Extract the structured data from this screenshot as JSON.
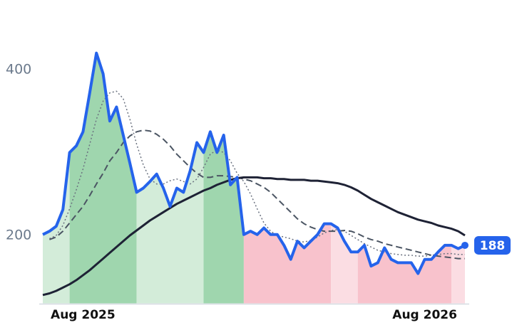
{
  "chart_data": {
    "type": "line",
    "categories": [
      null,
      null,
      null,
      null,
      null,
      null,
      "Aug 2025",
      null,
      null,
      null,
      null,
      null,
      null,
      null,
      null,
      null,
      null,
      null,
      null,
      null,
      null,
      null,
      null,
      null,
      null,
      null,
      null,
      null,
      null,
      null,
      null,
      null,
      null,
      null,
      null,
      null,
      null,
      null,
      null,
      null,
      null,
      null,
      null,
      null,
      null,
      null,
      null,
      null,
      null,
      null,
      null,
      null,
      null,
      null,
      null,
      null,
      null,
      "Aug 2026",
      null,
      null,
      null,
      null,
      null,
      null
    ],
    "series": [
      {
        "color": "#2563eb",
        "width": 4,
        "dash": "solid",
        "values": [
          201,
          205,
          211,
          231,
          300,
          308,
          325,
          372,
          420,
          395,
          338,
          355,
          321,
          287,
          252,
          257,
          265,
          274,
          257,
          235,
          257,
          252,
          278,
          312,
          300,
          325,
          300,
          321,
          261,
          270,
          201,
          205,
          201,
          209,
          201,
          201,
          188,
          171,
          193,
          185,
          193,
          201,
          214,
          214,
          209,
          193,
          180,
          180,
          188,
          163,
          167,
          185,
          171,
          167,
          167,
          167,
          154,
          171,
          171,
          180,
          188,
          188,
          184,
          188
        ]
      },
      {
        "color": "#1e2235",
        "width": 3,
        "dash": "solid",
        "values": [
          128,
          130,
          133,
          137,
          141,
          146,
          152,
          158,
          165,
          172,
          179,
          186,
          193,
          200,
          206,
          212,
          218,
          223,
          228,
          233,
          238,
          242,
          246,
          250,
          254,
          257,
          261,
          264,
          267,
          269,
          270,
          270,
          270,
          269,
          269,
          268,
          268,
          267,
          267,
          267,
          266,
          266,
          265,
          264,
          263,
          261,
          258,
          254,
          249,
          244,
          240,
          236,
          232,
          228,
          225,
          222,
          219,
          217,
          215,
          212,
          210,
          208,
          205,
          200
        ]
      },
      {
        "color": "#4b5563",
        "width": 2,
        "dash": "dashed",
        "values": [
          null,
          195,
          198,
          205,
          215,
          225,
          235,
          248,
          262,
          275,
          290,
          300,
          312,
          320,
          325,
          327,
          326,
          322,
          316,
          308,
          298,
          290,
          282,
          275,
          270,
          270,
          272,
          272,
          271,
          270,
          268,
          266,
          262,
          258,
          252,
          244,
          236,
          228,
          220,
          214,
          210,
          207,
          205,
          205,
          205,
          206,
          205,
          202,
          198,
          195,
          193,
          190,
          188,
          186,
          184,
          182,
          180,
          178,
          176,
          175,
          174,
          173,
          172,
          172
        ]
      },
      {
        "color": "#6b7280",
        "width": 1.5,
        "dash": "dotted",
        "values": [
          null,
          196,
          200,
          212,
          232,
          255,
          280,
          310,
          340,
          362,
          372,
          374,
          365,
          340,
          310,
          285,
          268,
          262,
          262,
          266,
          268,
          265,
          262,
          268,
          282,
          298,
          303,
          300,
          290,
          275,
          265,
          250,
          232,
          215,
          205,
          200,
          198,
          196,
          193,
          192,
          194,
          198,
          203,
          206,
          207,
          205,
          200,
          195,
          190,
          186,
          182,
          180,
          178,
          177,
          176,
          176,
          175,
          175,
          176,
          177,
          178,
          178,
          177,
          177
        ]
      }
    ],
    "bands": [
      {
        "from": 0,
        "to": 4,
        "color": "#d3ecd9"
      },
      {
        "from": 4,
        "to": 14,
        "color": "#9fd6ae"
      },
      {
        "from": 14,
        "to": 24,
        "color": "#d3ecd9"
      },
      {
        "from": 24,
        "to": 30,
        "color": "#9fd6ae"
      },
      {
        "from": 30,
        "to": 43,
        "color": "#f8c2cc"
      },
      {
        "from": 43,
        "to": 47,
        "color": "#fbdde3"
      },
      {
        "from": 47,
        "to": 61,
        "color": "#f8c2cc"
      },
      {
        "from": 61,
        "to": 63,
        "color": "#fbdde3"
      }
    ],
    "ylim": [
      118,
      445
    ],
    "yticks": [
      200,
      400
    ],
    "grid": false
  }
}
